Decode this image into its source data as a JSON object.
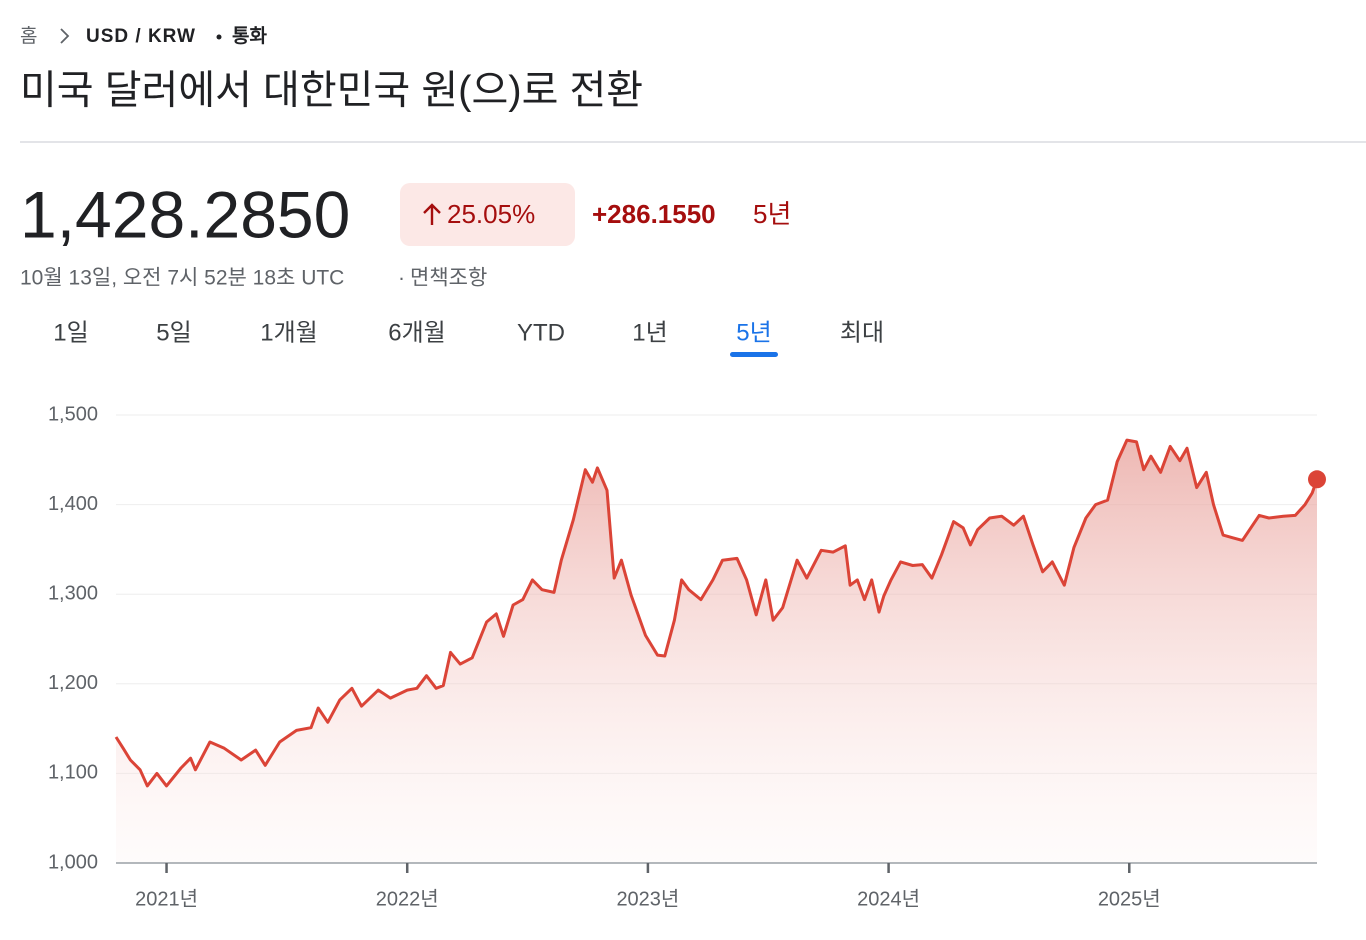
{
  "breadcrumb": {
    "home": "홈",
    "pair": "USD / KRW",
    "kind": "통화"
  },
  "title": "미국 달러에서 대한민국 원(으)로 전환",
  "quote": {
    "price": "1,428.2850",
    "change_pct": "25.05%",
    "change_abs": "+286.1550",
    "period": "5년",
    "timestamp": "10월 13일, 오전 7시 52분 18초 UTC",
    "disclaimer": "면책조항"
  },
  "tabs": {
    "items": [
      "1일",
      "5일",
      "1개월",
      "6개월",
      "YTD",
      "1년",
      "5년",
      "최대"
    ],
    "active": 6
  },
  "chart_data": {
    "type": "area",
    "color": "#db4437",
    "grid": true,
    "x": [
      2020.79,
      2020.82,
      2020.85,
      2020.89,
      2020.92,
      2020.96,
      2021.0,
      2021.06,
      2021.1,
      2021.12,
      2021.18,
      2021.24,
      2021.31,
      2021.37,
      2021.41,
      2021.47,
      2021.54,
      2021.6,
      2021.63,
      2021.67,
      2021.72,
      2021.77,
      2021.81,
      2021.88,
      2021.93,
      2022.0,
      2022.04,
      2022.08,
      2022.12,
      2022.15,
      2022.18,
      2022.22,
      2022.27,
      2022.33,
      2022.37,
      2022.4,
      2022.44,
      2022.48,
      2022.52,
      2022.56,
      2022.61,
      2022.64,
      2022.69,
      2022.74,
      2022.77,
      2022.79,
      2022.83,
      2022.86,
      2022.89,
      2022.93,
      2022.99,
      2023.04,
      2023.07,
      2023.11,
      2023.14,
      2023.17,
      2023.22,
      2023.27,
      2023.31,
      2023.37,
      2023.41,
      2023.45,
      2023.49,
      2023.52,
      2023.56,
      2023.62,
      2023.66,
      2023.72,
      2023.77,
      2023.82,
      2023.84,
      2023.87,
      2023.9,
      2023.93,
      2023.96,
      2023.98,
      2024.01,
      2024.05,
      2024.1,
      2024.14,
      2024.18,
      2024.22,
      2024.27,
      2024.31,
      2024.34,
      2024.37,
      2024.42,
      2024.47,
      2024.52,
      2024.56,
      2024.6,
      2024.64,
      2024.68,
      2024.73,
      2024.77,
      2024.82,
      2024.86,
      2024.91,
      2024.95,
      2024.99,
      2025.03,
      2025.06,
      2025.09,
      2025.13,
      2025.17,
      2025.21,
      2025.24,
      2025.28,
      2025.32,
      2025.35,
      2025.39,
      2025.43,
      2025.47,
      2025.54,
      2025.58,
      2025.64,
      2025.69,
      2025.73,
      2025.76,
      2025.78
    ],
    "values": [
      1140.6,
      1128,
      1115,
      1104,
      1086,
      1100,
      1086,
      1106,
      1117,
      1104,
      1135,
      1128,
      1115,
      1126,
      1109,
      1135,
      1148,
      1151,
      1173,
      1157,
      1182,
      1195,
      1175,
      1193,
      1184,
      1193,
      1195,
      1209,
      1195,
      1198,
      1235,
      1222,
      1229,
      1269,
      1278,
      1253,
      1288,
      1294,
      1316,
      1305,
      1302,
      1338,
      1383,
      1439,
      1425,
      1441,
      1416,
      1318,
      1338,
      1299,
      1254,
      1232,
      1231,
      1271,
      1316,
      1305,
      1294,
      1316,
      1338,
      1340,
      1316,
      1277,
      1316,
      1271,
      1285,
      1338,
      1318,
      1349,
      1347,
      1354,
      1310,
      1316,
      1294,
      1316,
      1280,
      1298,
      1316,
      1336,
      1332,
      1333,
      1318,
      1344,
      1381,
      1374,
      1355,
      1372,
      1385,
      1387,
      1377,
      1387,
      1355,
      1325,
      1336,
      1310,
      1352,
      1385,
      1400,
      1405,
      1448,
      1472,
      1470,
      1439,
      1454,
      1436,
      1465,
      1449,
      1463,
      1419,
      1436,
      1400,
      1366,
      1363,
      1360,
      1388,
      1385,
      1387,
      1388,
      1400,
      1413,
      1428.285
    ],
    "xlim": [
      2020.79,
      2025.78
    ],
    "xticks": [
      {
        "value": 2021,
        "label": "2021년"
      },
      {
        "value": 2022,
        "label": "2022년"
      },
      {
        "value": 2023,
        "label": "2023년"
      },
      {
        "value": 2024,
        "label": "2024년"
      },
      {
        "value": 2025,
        "label": "2025년"
      }
    ],
    "ylim": [
      1000,
      1500
    ],
    "yticks": [
      {
        "value": 1000,
        "label": "1,000"
      },
      {
        "value": 1100,
        "label": "1,100"
      },
      {
        "value": 1200,
        "label": "1,200"
      },
      {
        "value": 1300,
        "label": "1,300"
      },
      {
        "value": 1400,
        "label": "1,400"
      },
      {
        "value": 1500,
        "label": "1,500"
      }
    ]
  }
}
